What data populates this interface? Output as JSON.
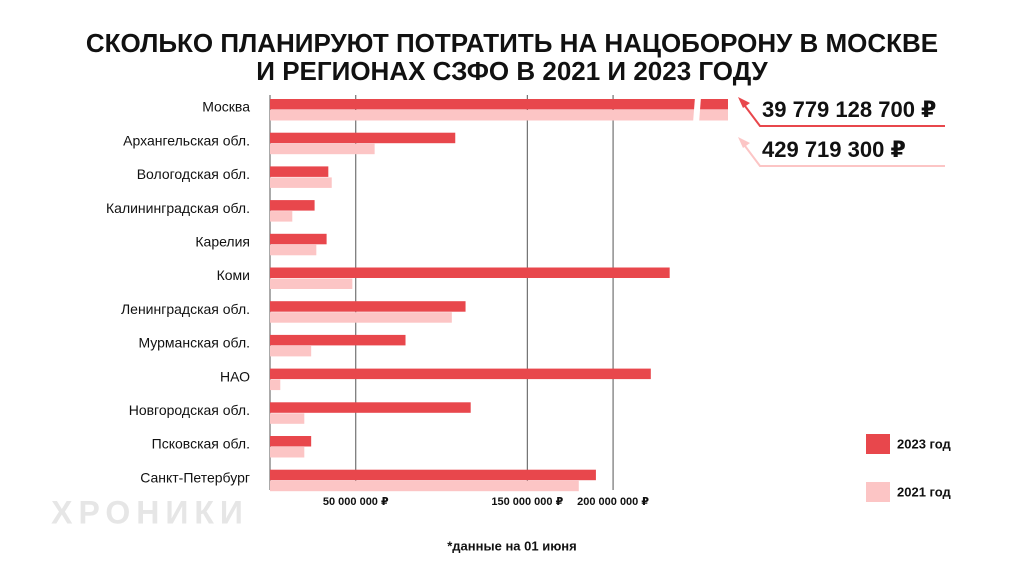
{
  "chart_data": {
    "type": "bar",
    "title": [
      "СКОЛЬКО ПЛАНИРУЮТ ПОТРАТИТЬ НА НАЦОБОРОНУ В МОСКВЕ",
      "И РЕГИОНАХ СЗФО В 2021 И 2023 ГОДУ"
    ],
    "orientation": "horizontal",
    "categories": [
      "Москва",
      "Архангельская обл.",
      "Вологодская обл.",
      "Калининградская обл.",
      "Карелия",
      "Коми",
      "Ленинградская обл.",
      "Мурманская обл.",
      "НАО",
      "Новгородская обл.",
      "Псковская обл.",
      "Санкт-Петербург"
    ],
    "series": [
      {
        "name": "2023 год",
        "color": "#e8474c",
        "values": [
          39779128700,
          108000000,
          34000000,
          26000000,
          33000000,
          233000000,
          114000000,
          79000000,
          222000000,
          117000000,
          24000000,
          190000000
        ],
        "value_labels": [
          "39 779 128 700 ₽",
          null,
          null,
          null,
          null,
          null,
          null,
          null,
          null,
          null,
          null,
          null
        ]
      },
      {
        "name": "2021 год",
        "color": "#fcc5c5",
        "values": [
          429719300,
          61000000,
          36000000,
          13000000,
          27000000,
          48000000,
          106000000,
          24000000,
          6000000,
          20000000,
          20000000,
          180000000
        ],
        "value_labels": [
          "429 719 300 ₽",
          null,
          null,
          null,
          null,
          null,
          null,
          null,
          null,
          null,
          null,
          null
        ]
      }
    ],
    "xlim": [
      0,
      267000000
    ],
    "xticks": [
      {
        "value": 50000000,
        "label": "50 000 000 ₽"
      },
      {
        "value": 150000000,
        "label": "150 000 000 ₽"
      },
      {
        "value": 200000000,
        "label": "200 000 000 ₽"
      }
    ],
    "grid": true,
    "legend": "bottom-right",
    "footnote": "*данные на 01 июня",
    "watermark": "ХРОНИКИ"
  }
}
